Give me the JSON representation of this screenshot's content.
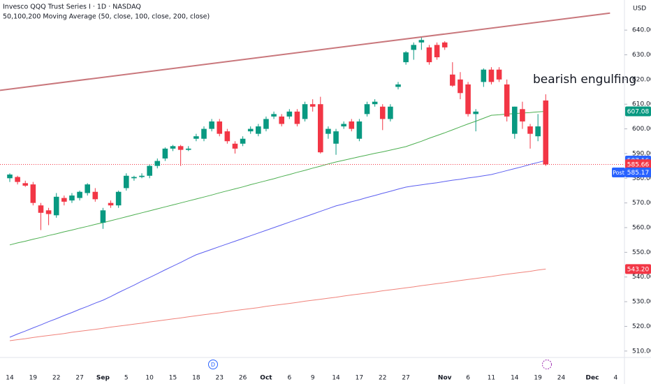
{
  "chart_data": {
    "type": "candlestick",
    "title": "Invesco QQQ Trust Series I · 1D · NASDAQ",
    "subtitle": "50,100,200 Moving Average (50, close, 100, close, 200, close)",
    "currency": "USD",
    "annotation": "bearish engulfing",
    "event_markers": [
      "D"
    ],
    "up_color": "#089981",
    "down_color": "#f23645",
    "categories": [
      "14",
      null,
      null,
      "19",
      null,
      null,
      "22",
      null,
      null,
      "27",
      null,
      null,
      "Sep",
      null,
      null,
      "5",
      null,
      null,
      "10",
      null,
      null,
      "15",
      null,
      null,
      "18",
      null,
      null,
      "23",
      null,
      null,
      "26",
      null,
      null,
      "Oct",
      null,
      null,
      "6",
      null,
      null,
      "9",
      null,
      null,
      "14",
      null,
      null,
      "17",
      null,
      null,
      "22",
      null,
      null,
      "27",
      null,
      null,
      null,
      null,
      "Nov",
      null,
      null,
      "6",
      null,
      null,
      "11",
      null,
      null,
      "14",
      null,
      null,
      "19",
      null,
      null,
      "24",
      null,
      null,
      null,
      "Dec",
      null,
      null,
      "4"
    ],
    "open": [
      580,
      580.5,
      578,
      577.5,
      569,
      567,
      565,
      572,
      571,
      572,
      574,
      574.5,
      562,
      570,
      569,
      576,
      580,
      580.5,
      581,
      585,
      588,
      592,
      593,
      591.5,
      596,
      596,
      600,
      603,
      599,
      594,
      594,
      599,
      598,
      600,
      605,
      605,
      605,
      607,
      604,
      610,
      610,
      598,
      594,
      601,
      603,
      596,
      606,
      610,
      609,
      604,
      617,
      627,
      632,
      635,
      633,
      634,
      635,
      622,
      620,
      618,
      606,
      619,
      624,
      624,
      618,
      598,
      608,
      601,
      597,
      611.5,
      null,
      null,
      null,
      null,
      null,
      null,
      null,
      null,
      null
    ],
    "high": [
      582,
      581,
      579,
      578.5,
      570,
      568,
      574,
      573,
      574,
      575,
      578,
      576,
      568,
      571,
      575,
      582,
      581,
      582,
      585.5,
      588,
      592.5,
      593.5,
      593.5,
      593,
      598,
      601,
      604,
      604,
      600,
      595,
      597,
      601,
      602,
      605,
      607,
      606,
      608,
      608,
      611,
      612,
      613,
      601,
      600,
      603,
      604,
      604,
      611,
      612,
      610,
      610,
      619,
      631.5,
      635,
      637,
      634,
      635,
      635.5,
      627,
      623,
      619,
      608,
      624.5,
      625,
      625,
      620,
      609,
      611,
      602,
      606,
      614,
      null,
      null,
      null,
      null,
      null,
      null,
      null,
      null,
      null
    ],
    "low": [
      578.5,
      577.5,
      576.5,
      569,
      559,
      561,
      564,
      569,
      570,
      571,
      573,
      570.5,
      559.5,
      568,
      568,
      575,
      579,
      580,
      580,
      584,
      587,
      591,
      585,
      591,
      595,
      595,
      599,
      597,
      594,
      590,
      593,
      598,
      597,
      599,
      604,
      601,
      604,
      601,
      603,
      607,
      590,
      596,
      589.5,
      600,
      599,
      595,
      605,
      609,
      599.5,
      603,
      616,
      626,
      628,
      632,
      626,
      628,
      632,
      617,
      612,
      605,
      599,
      617,
      618,
      619,
      603,
      596,
      600,
      592,
      595,
      585,
      null,
      null,
      null,
      null,
      null,
      null,
      null,
      null,
      null
    ],
    "close": [
      581.5,
      578.5,
      577,
      570,
      566,
      565.5,
      572.5,
      570.5,
      573,
      574.5,
      577.5,
      571.5,
      567,
      569,
      574.5,
      581,
      580.5,
      581,
      585,
      587,
      592,
      593,
      591.5,
      592,
      597,
      600,
      603,
      598,
      595,
      592,
      596,
      600,
      601,
      604,
      606,
      602,
      607,
      602,
      610,
      609,
      590.5,
      600,
      599,
      602,
      600,
      603,
      610,
      611,
      604,
      609,
      618,
      631,
      634,
      636,
      627,
      629,
      633,
      617.5,
      614.5,
      606,
      607,
      624,
      619,
      620,
      605,
      609,
      603,
      598,
      601,
      585.6,
      null,
      null,
      null,
      null,
      null,
      null,
      null,
      null,
      null
    ],
    "series": [
      {
        "name": "MA 50",
        "color": "#4caf50",
        "values": [
          553,
          553.8,
          554.5,
          555.3,
          556,
          556.8,
          557.5,
          558.3,
          559,
          559.8,
          560.5,
          561.3,
          562,
          562.8,
          563.6,
          564.4,
          565.2,
          566,
          566.8,
          567.6,
          568.4,
          569.2,
          570,
          570.8,
          571.6,
          572.4,
          573.2,
          574.1,
          574.9,
          575.7,
          576.5,
          577.4,
          578.2,
          579,
          579.8,
          580.7,
          581.5,
          582.4,
          583.2,
          584.1,
          584.9,
          585.8,
          586.6,
          587.3,
          588,
          588.7,
          589.4,
          590.1,
          590.7,
          591.4,
          592.1,
          592.8,
          593.9,
          595,
          596.2,
          597.3,
          598.4,
          599.6,
          600.8,
          602,
          603.1,
          604.3,
          605.5,
          605.7,
          606,
          606.2,
          606.4,
          606.6,
          606.9,
          607.1,
          null,
          null,
          null,
          null,
          null,
          null,
          null,
          null,
          null
        ]
      },
      {
        "name": "MA 100",
        "color": "#5b5ef0",
        "values": [
          515.6,
          516.9,
          518.1,
          519.4,
          520.6,
          521.9,
          523.1,
          524.4,
          525.6,
          526.9,
          528.1,
          529.4,
          530.6,
          532.1,
          533.7,
          535.2,
          536.7,
          538.3,
          539.8,
          541.3,
          542.9,
          544.4,
          545.9,
          547.5,
          549,
          550.1,
          551.2,
          552.3,
          553.4,
          554.5,
          555.6,
          556.7,
          557.8,
          558.9,
          560,
          561.1,
          562.2,
          563.3,
          564.4,
          565.5,
          566.6,
          567.7,
          568.8,
          569.6,
          570.5,
          571.3,
          572.2,
          573,
          573.9,
          574.7,
          575.6,
          576.4,
          576.9,
          577.3,
          577.8,
          578.2,
          578.7,
          579.2,
          579.6,
          580.1,
          580.5,
          581,
          581.5,
          582.3,
          583.1,
          583.9,
          584.7,
          585.6,
          586.4,
          587.2,
          null,
          null,
          null,
          null,
          null,
          null,
          null,
          null,
          null
        ]
      },
      {
        "name": "MA 200",
        "color": "#f0827a",
        "values": [
          514.2,
          514.6,
          515,
          515.5,
          515.9,
          516.3,
          516.7,
          517.1,
          517.6,
          518,
          518.4,
          518.8,
          519.2,
          519.7,
          520.1,
          520.5,
          520.9,
          521.3,
          521.8,
          522.2,
          522.6,
          523,
          523.4,
          523.9,
          524.3,
          524.7,
          525.1,
          525.5,
          526,
          526.4,
          526.8,
          527.2,
          527.6,
          528.1,
          528.5,
          528.9,
          529.3,
          529.7,
          530.2,
          530.6,
          531,
          531.4,
          531.8,
          532.3,
          532.7,
          533.1,
          533.5,
          533.9,
          534.4,
          534.8,
          535.2,
          535.6,
          536,
          536.5,
          536.9,
          537.3,
          537.7,
          538.1,
          538.6,
          539,
          539.4,
          539.8,
          540.2,
          540.7,
          541.1,
          541.5,
          541.9,
          542.3,
          542.8,
          543.2,
          null,
          null,
          null,
          null,
          null,
          null,
          null,
          null,
          null
        ]
      }
    ],
    "trendline": {
      "color": "#c9777c",
      "start": 615.6,
      "end": 646.9
    },
    "price_labels": [
      {
        "value": 607.08,
        "label": "607.08",
        "color": "#089981"
      },
      {
        "value": 587.16,
        "label": "587.16",
        "color": "#2962ff"
      },
      {
        "value": 585.66,
        "label": "585.66",
        "color": "#f23645"
      },
      {
        "value": 543.2,
        "label": "543.20",
        "color": "#f23645"
      }
    ],
    "post_label": {
      "tag": "Post",
      "value": 585.17,
      "label": "585.17",
      "color": "#2962ff"
    },
    "ylim": [
      507.4,
      652.2
    ],
    "yticks": [
      {
        "value": 510,
        "label": "510.00"
      },
      {
        "value": 520,
        "label": "520.00"
      },
      {
        "value": 530,
        "label": "530.00"
      },
      {
        "value": 540,
        "label": "540.00"
      },
      {
        "value": 550,
        "label": "550.00"
      },
      {
        "value": 560,
        "label": "560.00"
      },
      {
        "value": 570,
        "label": "570.00"
      },
      {
        "value": 580,
        "label": "580.00"
      },
      {
        "value": 590,
        "label": "590.00"
      },
      {
        "value": 600,
        "label": "600.00"
      },
      {
        "value": 610,
        "label": "610.00"
      },
      {
        "value": 620,
        "label": "620.00"
      },
      {
        "value": 630,
        "label": "630.00"
      },
      {
        "value": 640,
        "label": "640.00"
      }
    ],
    "grid": false
  }
}
